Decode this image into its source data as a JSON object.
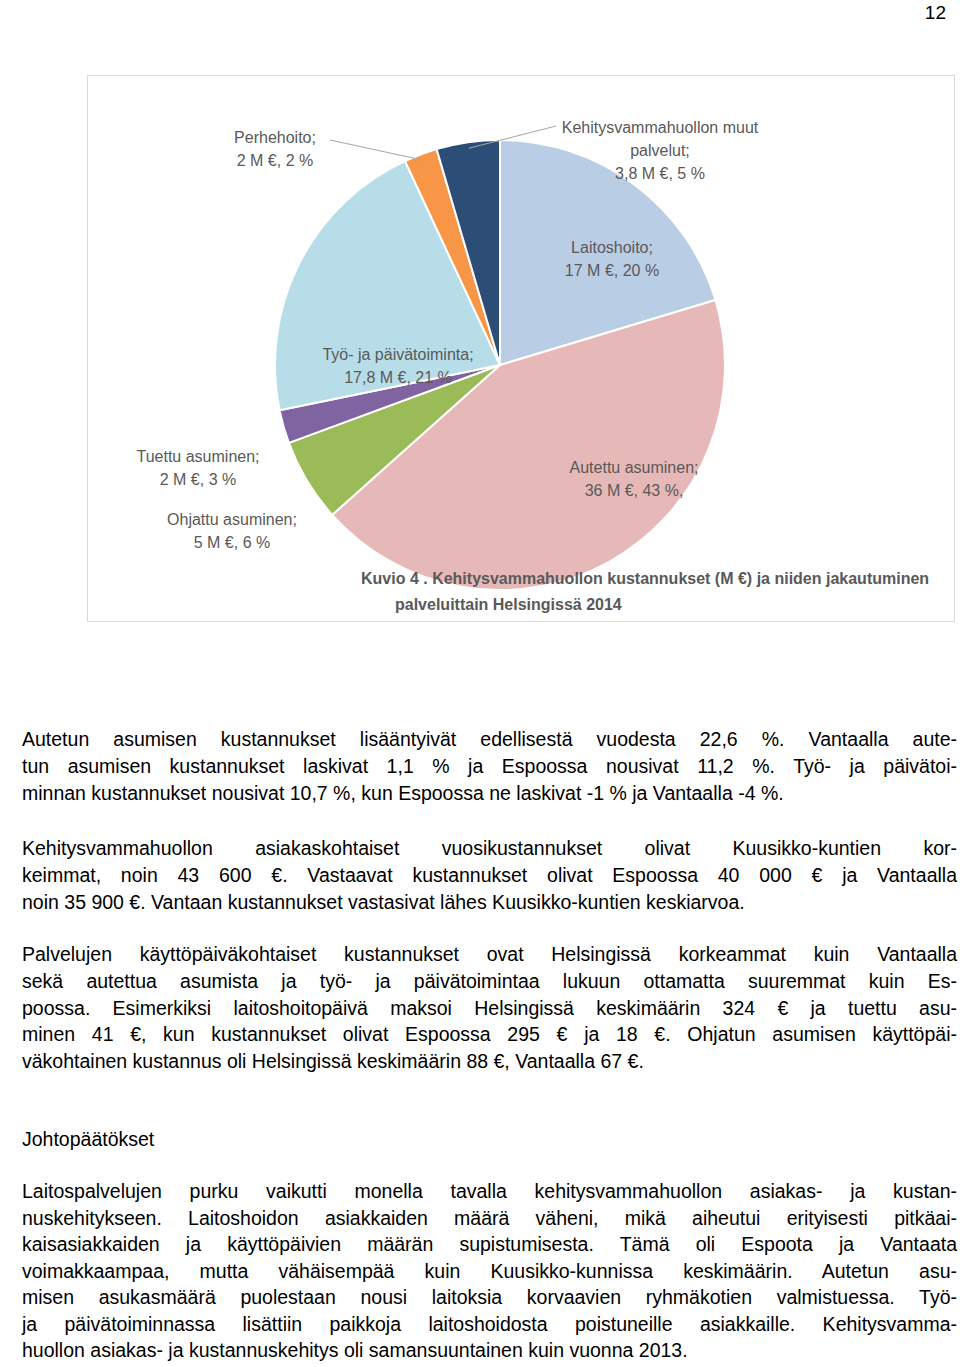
{
  "page_number": "12",
  "chart_data": {
    "type": "pie",
    "title": [
      "Kuvio 4 . Kehitysvammahuollon kustannukset (M €) ja niiden jakautuminen",
      "palveluittain Helsingissä 2014"
    ],
    "categories": [
      "Laitoshoito;",
      "Autettu asuminen;",
      "Ohjattu asuminen;",
      "Tuettu asuminen;",
      "Työ- ja päivätoiminta;",
      "Perhehoito;",
      "Kehitysvammahuollon muut palvelut;"
    ],
    "values": [
      17,
      36,
      5,
      2,
      17.8,
      2,
      3.8
    ],
    "value_labels": [
      "17 M €, 20 %",
      "36 M €, 43 %,",
      "5 M €, 6 %",
      "2 M €, 3 %",
      "17,8 M €, 21 %",
      "2 M €, 2 %",
      "3,8 M €, 5 %"
    ],
    "colors": [
      "#b9cde5",
      "#e6b9b8",
      "#9bbb59",
      "#8064a2",
      "#b7dde8",
      "#f79646",
      "#2c4d75"
    ],
    "data_labels": true
  },
  "paragraphs": [
    [
      "Autetun asumisen kustannukset lisääntyivät edellisestä vuodesta 22,6 %. Vantaalla aute-",
      "tun asumisen kustannukset laskivat 1,1 % ja Espoossa nousivat 11,2 %. Työ- ja päivätoi-",
      "minnan kustannukset nousivat 10,7 %, kun Espoossa ne laskivat -1 % ja Vantaalla -4 %."
    ],
    [
      "Kehitysvammahuollon asiakaskohtaiset vuosikustannukset olivat Kuusikko-kuntien kor-",
      "keimmat, noin 43 600 €. Vastaavat kustannukset olivat Espoossa 40 000 € ja Vantaalla",
      "noin 35 900 €. Vantaan kustannukset vastasivat lähes Kuusikko-kuntien keskiarvoa."
    ],
    [
      "Palvelujen käyttöpäiväkohtaiset kustannukset ovat Helsingissä korkeammat kuin Vantaalla",
      "sekä autettua asumista ja työ- ja päivätoimintaa lukuun ottamatta suuremmat kuin Es-",
      "poossa. Esimerkiksi laitoshoitopäivä maksoi Helsingissä keskimäärin 324 € ja tuettu asu-",
      "minen 41 €, kun kustannukset olivat Espoossa 295 € ja 18 €. Ohjatun asumisen käyttöpäi-",
      "väkohtainen kustannus oli Helsingissä keskimäärin 88 €, Vantaalla 67 €."
    ]
  ],
  "heading": "Johtopäätökset",
  "conclusion": [
    "Laitospalvelujen purku vaikutti monella tavalla kehitysvammahuollon asiakas- ja kustan-",
    "nuskehitykseen. Laitoshoidon asiakkaiden määrä väheni, mikä aiheutui erityisesti pitkäai-",
    "kaisasiakkaiden ja käyttöpäivien määrän supistumisesta. Tämä oli Espoota ja Vantaata",
    "voimakkaampaa, mutta vähäisempää kuin Kuusikko-kunnissa keskimäärin. Autetun asu-",
    "misen asukasmäärä puolestaan nousi laitoksia korvaavien ryhmäkotien valmistuessa. Työ-",
    "ja päivätoiminnassa lisättiin paikkoja laitoshoidosta poistuneille asiakkaille. Kehitysvamma-",
    "huollon asiakas- ja kustannuskehitys oli samansuuntainen kuin vuonna 2013."
  ]
}
